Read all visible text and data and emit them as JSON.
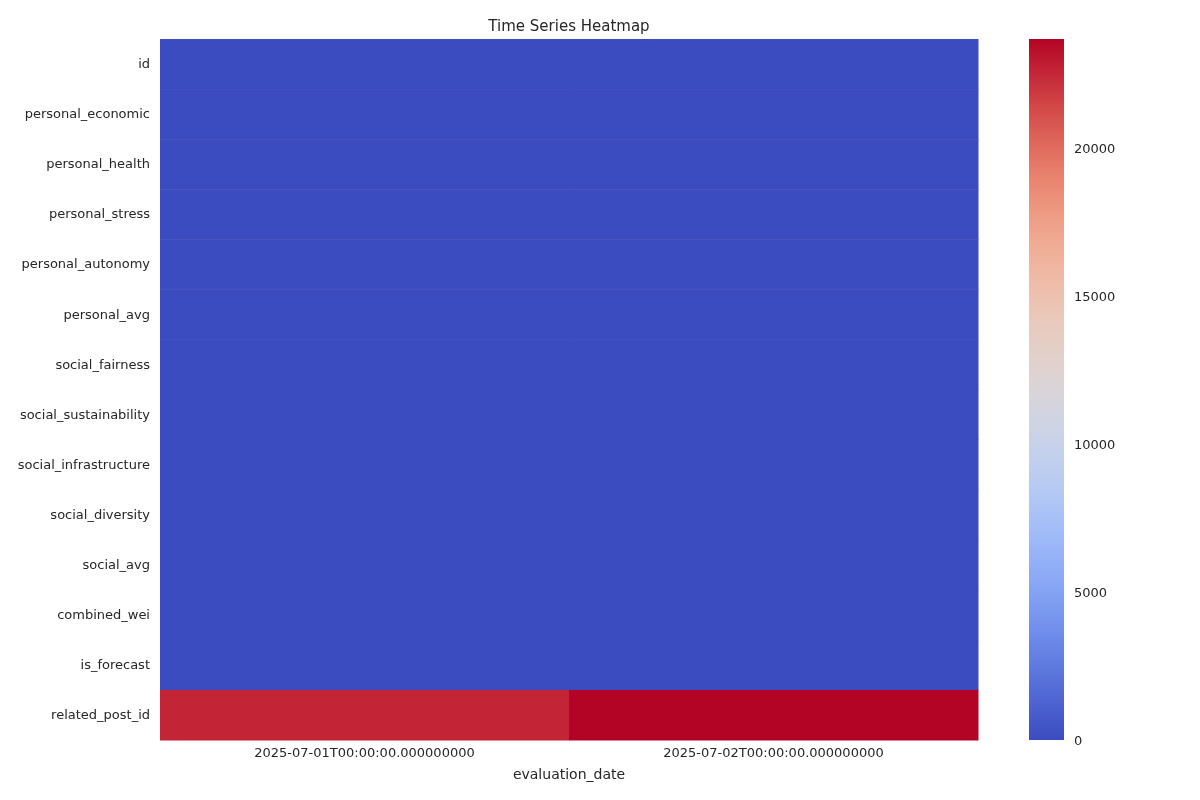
{
  "chart_data": {
    "type": "heatmap",
    "title": "Time Series Heatmap",
    "xlabel": "evaluation_date",
    "categories": [
      "2025-07-01T00:00:00.000000000",
      "2025-07-02T00:00:00.000000000"
    ],
    "y_categories": [
      "id",
      "personal_economic",
      "personal_health",
      "personal_stress",
      "personal_autonomy",
      "personal_avg",
      "social_fairness",
      "social_sustainability",
      "social_infrastructure",
      "social_diversity",
      "social_avg",
      "combined_wei",
      "is_forecast",
      "related_post_id"
    ],
    "cells": [
      [
        0,
        0
      ],
      [
        0,
        0
      ],
      [
        0,
        0
      ],
      [
        0,
        0
      ],
      [
        0,
        0
      ],
      [
        0,
        0
      ],
      [
        0,
        0
      ],
      [
        0,
        0
      ],
      [
        0,
        0
      ],
      [
        0,
        0
      ],
      [
        0,
        0
      ],
      [
        0,
        0
      ],
      [
        0,
        0
      ],
      [
        22600,
        23680
      ]
    ],
    "clim": [
      0,
      23680
    ],
    "cticks": [
      0,
      5000,
      10000,
      15000,
      20000
    ]
  }
}
